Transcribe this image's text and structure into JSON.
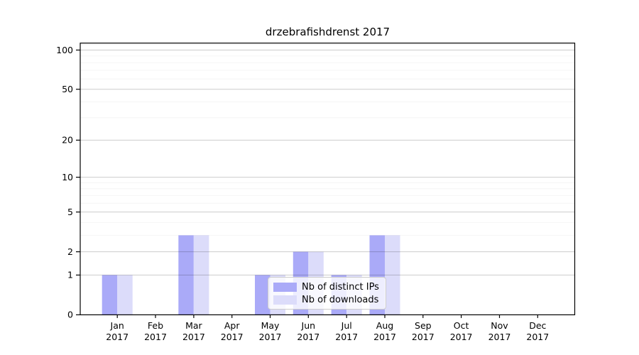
{
  "figure": {
    "background": "#ffffff"
  },
  "chart_data": {
    "type": "bar",
    "title": "drzebrafishdrenst 2017",
    "categories": [
      "Jan",
      "Feb",
      "Mar",
      "Apr",
      "May",
      "Jun",
      "Jul",
      "Aug",
      "Sep",
      "Oct",
      "Nov",
      "Dec"
    ],
    "xtick_year_label": "2017",
    "series": [
      {
        "name": "Nb of distinct IPs",
        "color": "#aaaaf8",
        "values": [
          1,
          0,
          3,
          0,
          1,
          2,
          1,
          3,
          0,
          0,
          0,
          0
        ]
      },
      {
        "name": "Nb of downloads",
        "color": "#dcdcfa",
        "values": [
          1,
          0,
          3,
          0,
          1,
          2,
          1,
          3,
          0,
          0,
          0,
          0
        ]
      }
    ],
    "yticks": [
      0,
      1,
      2,
      5,
      10,
      20,
      50,
      100
    ],
    "minor_yticks": [
      3,
      4,
      6,
      7,
      8,
      9,
      30,
      40,
      60,
      70,
      80,
      90,
      110
    ],
    "scale": "log1p",
    "ylim": [
      0,
      113
    ],
    "xlim": [
      -0.97,
      11.97
    ],
    "grid": "both",
    "legend": {
      "position": "lower center inside"
    },
    "colors": {
      "axis": "#000000",
      "grid_major": "rgba(0,0,0,0.20)",
      "grid_minor": "rgba(0,0,0,0.05)"
    }
  }
}
